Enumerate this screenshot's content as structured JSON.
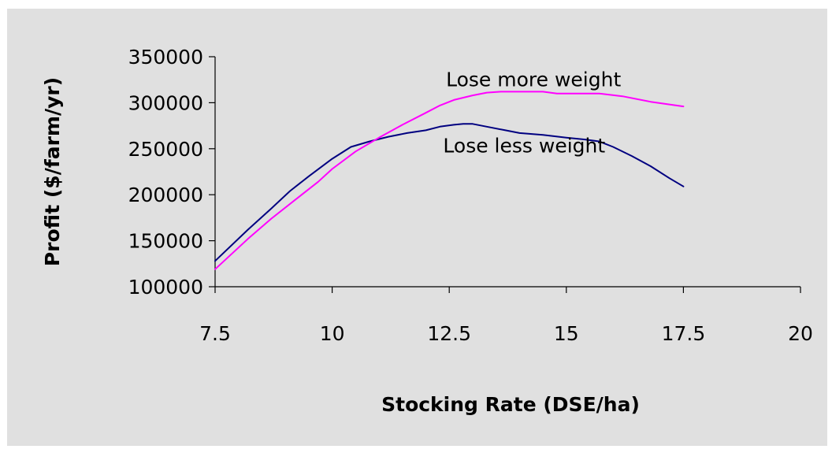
{
  "chart_data": {
    "type": "line",
    "title": "",
    "xlabel": "Stocking Rate (DSE/ha)",
    "ylabel": "Profit ($/farm/yr)",
    "xlim": [
      7.5,
      20
    ],
    "ylim": [
      100000,
      350000
    ],
    "x_ticks": [
      "7.5",
      "10",
      "12.5",
      "15",
      "17.5",
      "20"
    ],
    "y_ticks": [
      "100000",
      "150000",
      "200000",
      "250000",
      "300000",
      "350000"
    ],
    "grid": false,
    "legend": "none",
    "background_color": "#e0e0e0",
    "series": [
      {
        "color": "#000080",
        "x": [
          7.5,
          8.2,
          8.7,
          9.1,
          9.5,
          10.0,
          10.4,
          10.8,
          11.2,
          11.6,
          12.0,
          12.3,
          12.6,
          12.8,
          13.0,
          13.3,
          13.7,
          14.0,
          14.5,
          15.0,
          15.4,
          15.7,
          16.0,
          16.4,
          16.8,
          17.2,
          17.5
        ],
        "values": [
          128000,
          162000,
          185000,
          204000,
          220000,
          239000,
          252000,
          258000,
          263000,
          267000,
          270000,
          274000,
          276000,
          277000,
          277000,
          274000,
          270000,
          267000,
          265000,
          262000,
          260000,
          258000,
          252000,
          242000,
          231000,
          218000,
          209000
        ]
      },
      {
        "color": "#ff00ff",
        "x": [
          7.5,
          8.2,
          8.7,
          9.2,
          9.7,
          10.0,
          10.5,
          11.0,
          11.5,
          12.0,
          12.3,
          12.6,
          13.0,
          13.3,
          13.6,
          14.0,
          14.5,
          14.8,
          15.2,
          15.7,
          16.2,
          16.8,
          17.5
        ],
        "values": [
          119000,
          152000,
          174000,
          194000,
          214000,
          228000,
          247000,
          262000,
          276000,
          289000,
          297000,
          303000,
          308000,
          311000,
          312000,
          312000,
          312000,
          310000,
          310000,
          310000,
          307000,
          301000,
          296000
        ]
      }
    ],
    "annotations": [
      {
        "text": "Lose more weight",
        "x": 14.3,
        "y": 318000
      },
      {
        "text": "Lose less weight",
        "x": 14.1,
        "y": 246000
      }
    ]
  }
}
